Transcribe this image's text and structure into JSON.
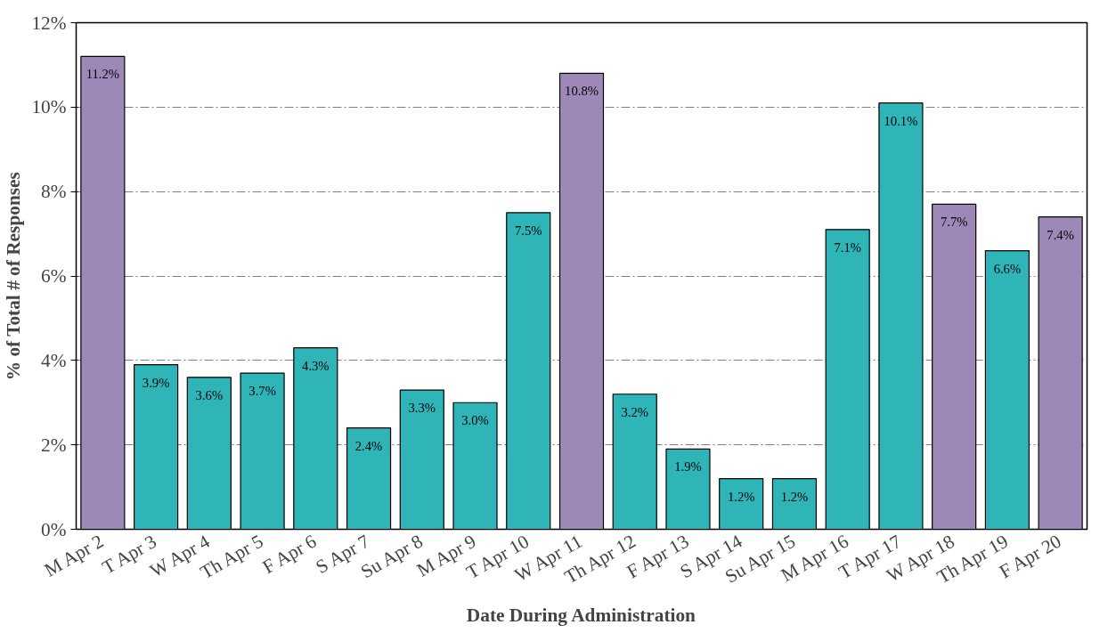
{
  "chart_data": {
    "type": "bar",
    "xlabel": "Date During Administration",
    "ylabel": "% of Total # of Responses",
    "categories": [
      "M Apr 2",
      "T Apr 3",
      "W Apr 4",
      "Th Apr 5",
      "F Apr 6",
      "S Apr 7",
      "Su Apr 8",
      "M Apr 9",
      "T Apr 10",
      "W Apr 11",
      "Th Apr 12",
      "F Apr 13",
      "S Apr 14",
      "Su Apr 15",
      "M Apr 16",
      "T Apr 17",
      "W Apr 18",
      "Th Apr 19",
      "F Apr 20"
    ],
    "values": [
      11.2,
      3.9,
      3.6,
      3.7,
      4.3,
      2.4,
      3.3,
      3.0,
      7.5,
      10.8,
      3.2,
      1.9,
      1.2,
      1.2,
      7.1,
      10.1,
      7.7,
      6.6,
      7.4
    ],
    "value_labels": [
      "11.2%",
      "3.9%",
      "3.6%",
      "3.7%",
      "4.3%",
      "2.4%",
      "3.3%",
      "3.0%",
      "7.5%",
      "10.8%",
      "3.2%",
      "1.9%",
      "1.2%",
      "1.2%",
      "7.1%",
      "10.1%",
      "7.7%",
      "6.6%",
      "7.4%"
    ],
    "colors": [
      "#9e88b8",
      "#2fb5b8",
      "#2fb5b8",
      "#2fb5b8",
      "#2fb5b8",
      "#2fb5b8",
      "#2fb5b8",
      "#2fb5b8",
      "#2fb5b8",
      "#9e88b8",
      "#2fb5b8",
      "#2fb5b8",
      "#2fb5b8",
      "#2fb5b8",
      "#2fb5b8",
      "#2fb5b8",
      "#9e88b8",
      "#2fb5b8",
      "#9e88b8"
    ],
    "ylim": [
      0,
      12
    ],
    "yticks": [
      {
        "value": 0,
        "label": "0%"
      },
      {
        "value": 2,
        "label": "2%"
      },
      {
        "value": 4,
        "label": "4%"
      },
      {
        "value": 6,
        "label": "6%"
      },
      {
        "value": 8,
        "label": "8%"
      },
      {
        "value": 10,
        "label": "10%"
      },
      {
        "value": 12,
        "label": "12%"
      }
    ],
    "grid": "y"
  }
}
